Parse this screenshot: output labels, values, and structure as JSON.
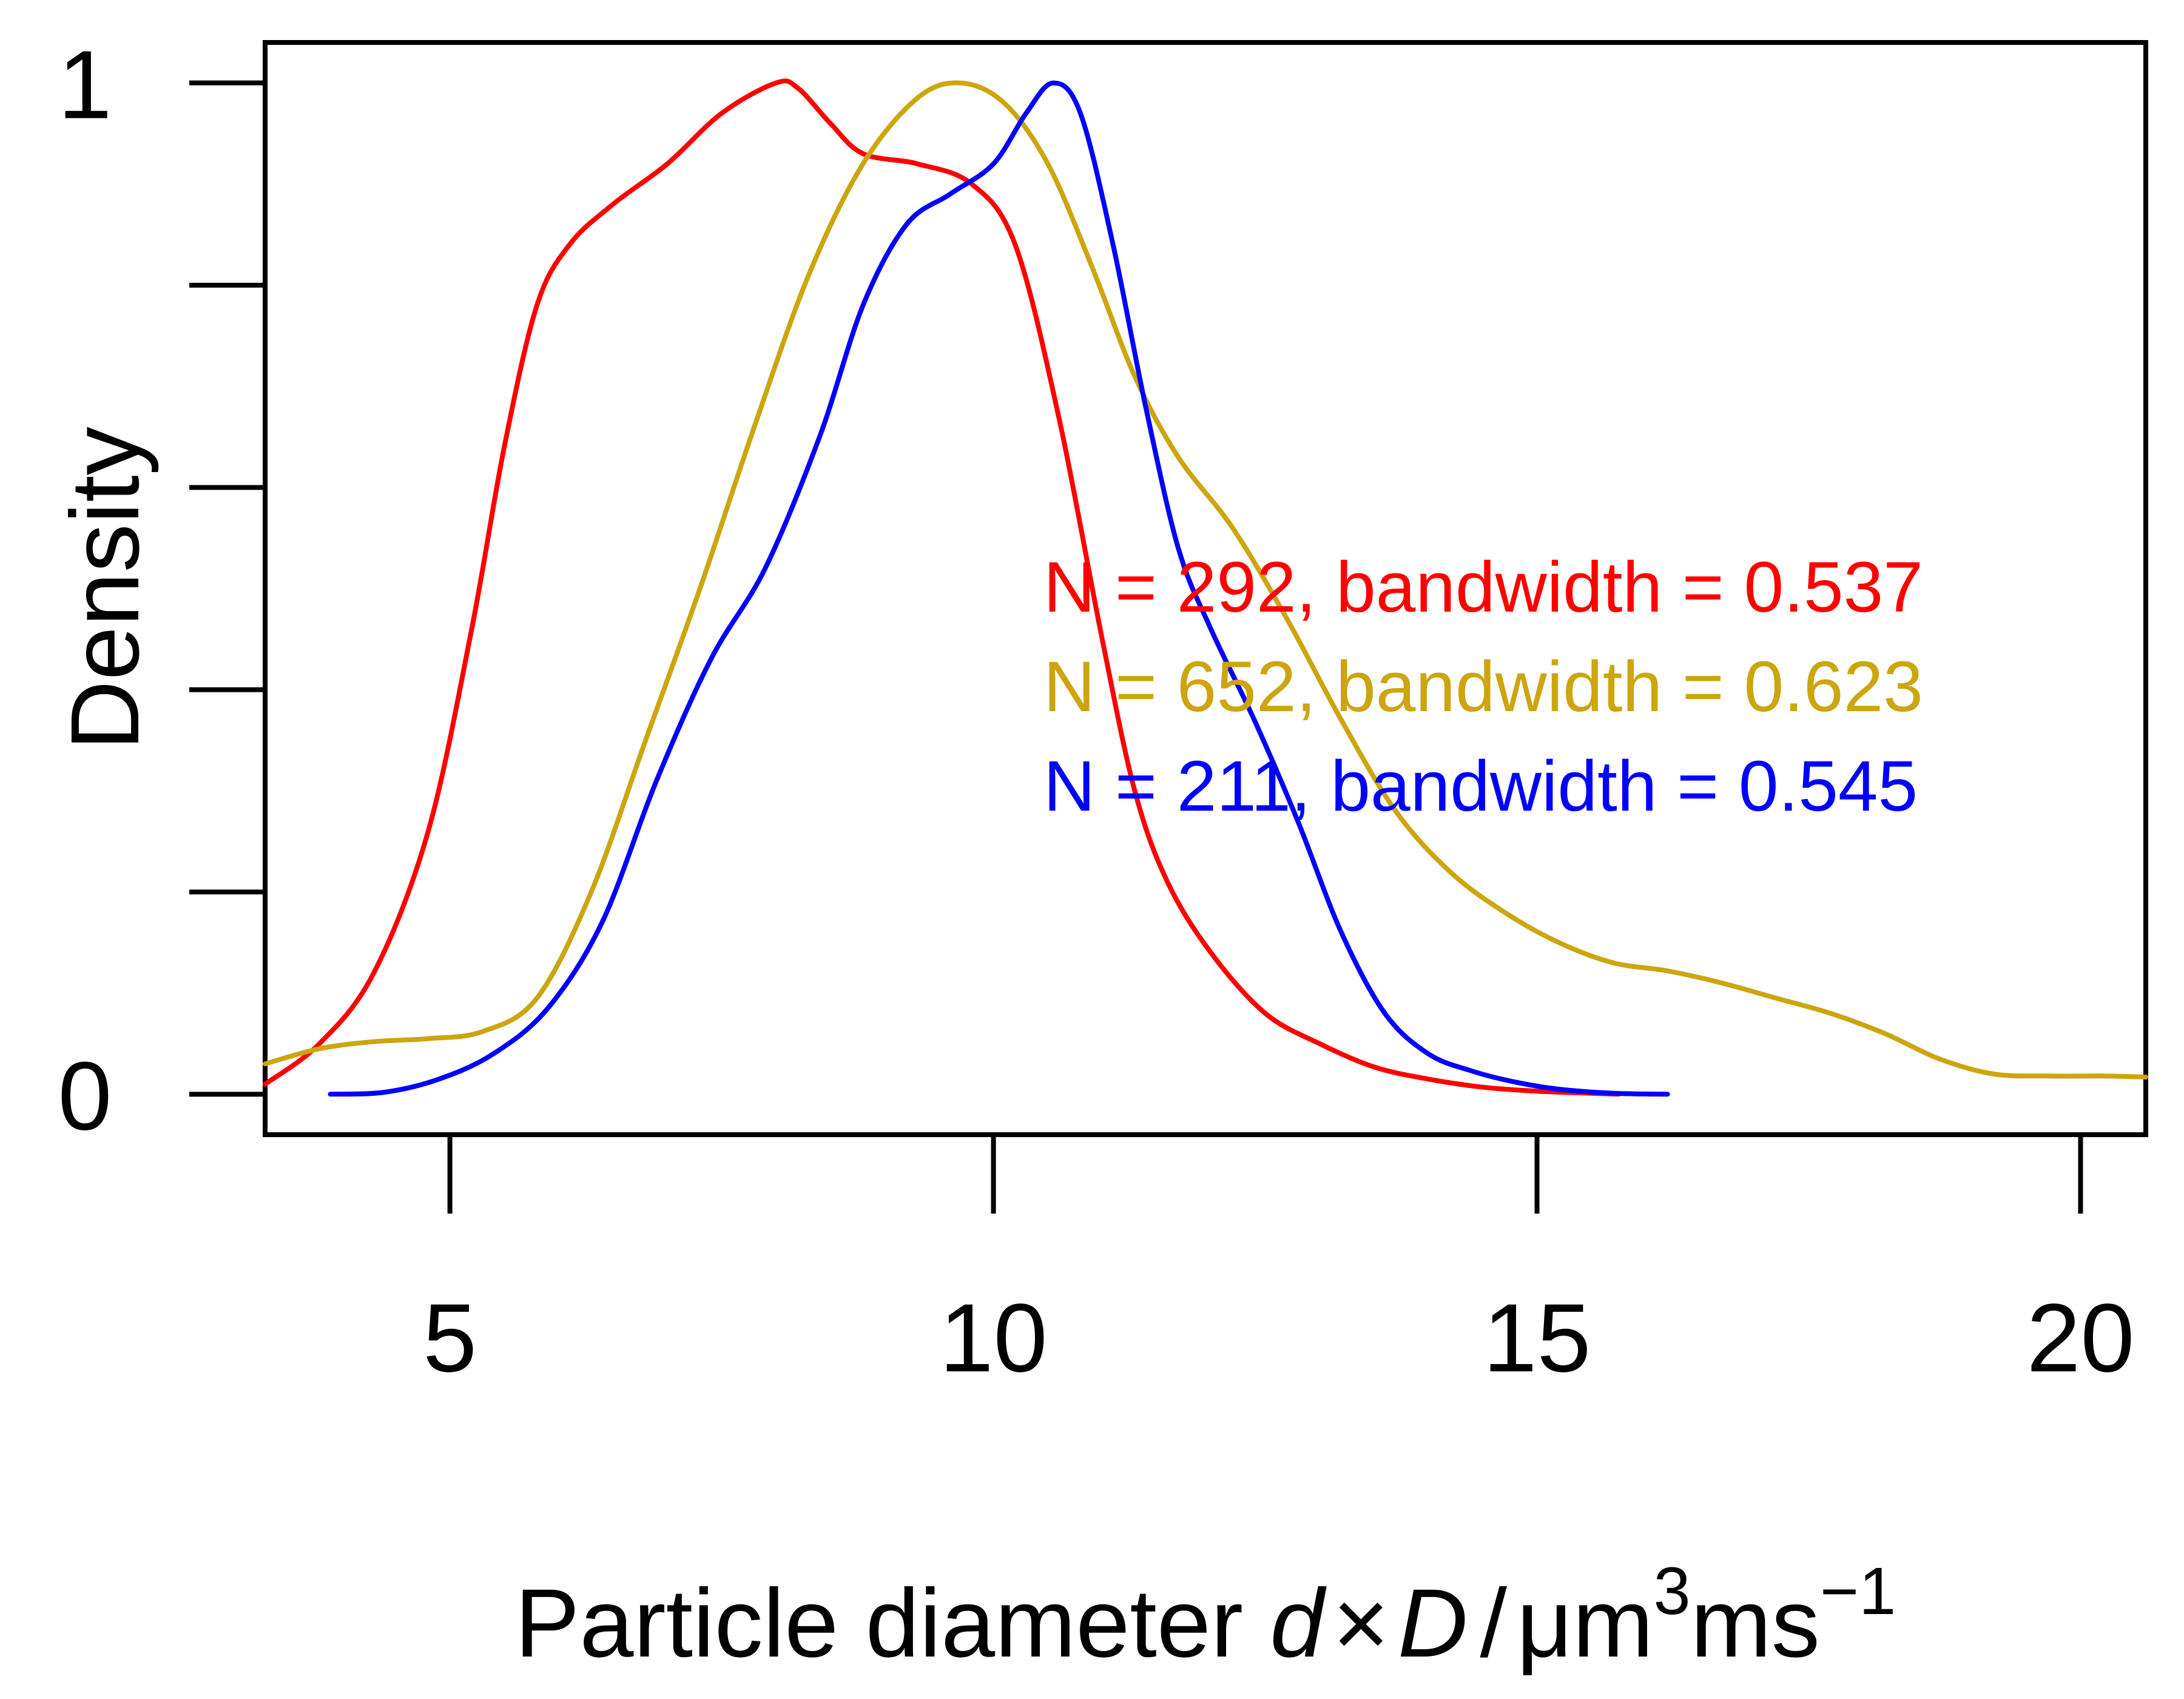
{
  "chart_data": {
    "type": "line",
    "title": "",
    "xlabel": {
      "prefix": "Particle diameter ",
      "var1": "d",
      "times": "×",
      "var2": "D",
      "slash": "/",
      "unit": "μm",
      "sup1": "3",
      "unit2": "ms",
      "sup2": "−1"
    },
    "ylabel": "Density",
    "xlim": [
      3.3,
      20.6
    ],
    "ylim": [
      -0.04,
      1.04
    ],
    "x_ticks": [
      5,
      10,
      15,
      20
    ],
    "x_tick_labels": [
      "5",
      "10",
      "15",
      "20"
    ],
    "y_ticks": [
      0,
      0.2,
      0.4,
      0.6,
      0.8,
      1
    ],
    "y_tick_labels": [
      "0",
      "",
      "",
      "",
      "",
      "1"
    ],
    "grid": false,
    "legend_placement": "right-middle",
    "series": [
      {
        "name": "N = 292, bandwidth = 0.537",
        "color": "#ff0000",
        "x": [
          3.3,
          3.8,
          4.3,
          4.8,
          5.2,
          5.5,
          5.8,
          6.1,
          6.5,
          7.0,
          7.5,
          8.0,
          8.2,
          8.5,
          8.8,
          9.3,
          9.8,
          10.2,
          10.6,
          11.0,
          11.3,
          11.6,
          12.0,
          12.5,
          13.0,
          13.5,
          14.0,
          14.5,
          15.0,
          15.5,
          15.75
        ],
        "values": [
          0.01,
          0.05,
          0.12,
          0.26,
          0.46,
          0.64,
          0.78,
          0.84,
          0.88,
          0.92,
          0.97,
          1.0,
          0.995,
          0.96,
          0.93,
          0.92,
          0.9,
          0.84,
          0.67,
          0.45,
          0.3,
          0.21,
          0.14,
          0.08,
          0.05,
          0.027,
          0.015,
          0.007,
          0.003,
          0.001,
          0.0
        ]
      },
      {
        "name": "N = 652, bandwidth = 0.623",
        "color": "#cca50f",
        "x": [
          3.3,
          3.8,
          4.3,
          4.8,
          5.3,
          5.8,
          6.3,
          6.8,
          7.3,
          7.8,
          8.3,
          8.8,
          9.3,
          9.7,
          10.1,
          10.5,
          10.9,
          11.3,
          11.7,
          12.2,
          12.7,
          13.2,
          13.7,
          14.2,
          14.7,
          15.2,
          15.7,
          16.2,
          16.7,
          17.2,
          17.7,
          18.2,
          18.7,
          19.2,
          19.7,
          20.2,
          20.6
        ],
        "values": [
          0.03,
          0.045,
          0.052,
          0.055,
          0.062,
          0.095,
          0.2,
          0.35,
          0.5,
          0.66,
          0.81,
          0.92,
          0.985,
          1.0,
          0.98,
          0.92,
          0.82,
          0.71,
          0.63,
          0.56,
          0.47,
          0.37,
          0.28,
          0.22,
          0.18,
          0.15,
          0.13,
          0.122,
          0.11,
          0.095,
          0.08,
          0.06,
          0.035,
          0.02,
          0.018,
          0.018,
          0.017
        ]
      },
      {
        "name": "N = 211, bandwidth = 0.545",
        "color": "#0000ff",
        "x": [
          3.9,
          4.4,
          4.9,
          5.4,
          5.9,
          6.4,
          6.9,
          7.4,
          7.9,
          8.4,
          8.8,
          9.2,
          9.6,
          10.0,
          10.3,
          10.55,
          10.8,
          11.1,
          11.4,
          11.7,
          12.0,
          12.4,
          12.8,
          13.2,
          13.6,
          14.0,
          14.4,
          14.8,
          15.2,
          15.7,
          16.2
        ],
        "values": [
          0.0,
          0.002,
          0.015,
          0.04,
          0.085,
          0.17,
          0.31,
          0.43,
          0.52,
          0.65,
          0.78,
          0.86,
          0.89,
          0.92,
          0.97,
          1.0,
          0.97,
          0.84,
          0.68,
          0.54,
          0.46,
          0.37,
          0.27,
          0.16,
          0.08,
          0.04,
          0.023,
          0.012,
          0.005,
          0.001,
          0.0
        ]
      }
    ]
  }
}
